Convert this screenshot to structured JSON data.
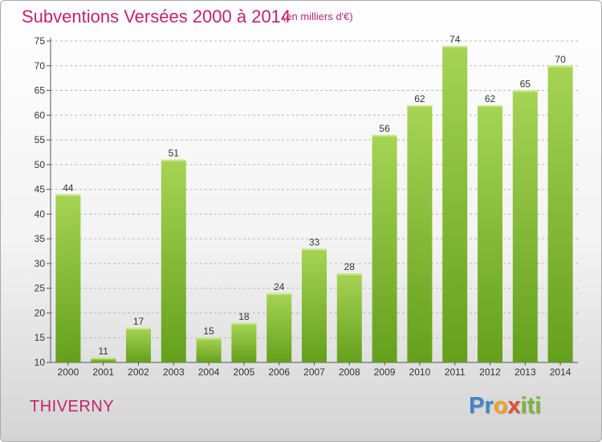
{
  "header": {
    "title": "Subventions Versées 2000 à 2014",
    "subtitle": "(en milliers d'€)"
  },
  "footer": {
    "commune": "THIVERNY",
    "logo_text": "Proxiti",
    "logo_parts": [
      "Pr",
      "o",
      "x",
      "iti"
    ]
  },
  "colors": {
    "title": "#c3226e",
    "bar_top": "#a6d455",
    "bar_bottom": "#64a01c",
    "grid": "#b9b9b9"
  },
  "chart_data": {
    "type": "bar",
    "title": "Subventions Versées 2000 à 2014",
    "subtitle": "(en milliers d'€)",
    "categories": [
      "2000",
      "2001",
      "2002",
      "2003",
      "2004",
      "2005",
      "2006",
      "2007",
      "2008",
      "2009",
      "2010",
      "2011",
      "2012",
      "2013",
      "2014"
    ],
    "values": [
      44,
      11,
      17,
      51,
      15,
      18,
      24,
      33,
      28,
      56,
      62,
      74,
      62,
      65,
      70
    ],
    "ylim": [
      10,
      75
    ],
    "yticks": [
      10,
      15,
      20,
      25,
      30,
      35,
      40,
      45,
      50,
      55,
      60,
      65,
      70,
      75
    ],
    "grid": true,
    "grid_style": "dashed horizontal",
    "data_labels": true,
    "xlabel": "",
    "ylabel": ""
  }
}
